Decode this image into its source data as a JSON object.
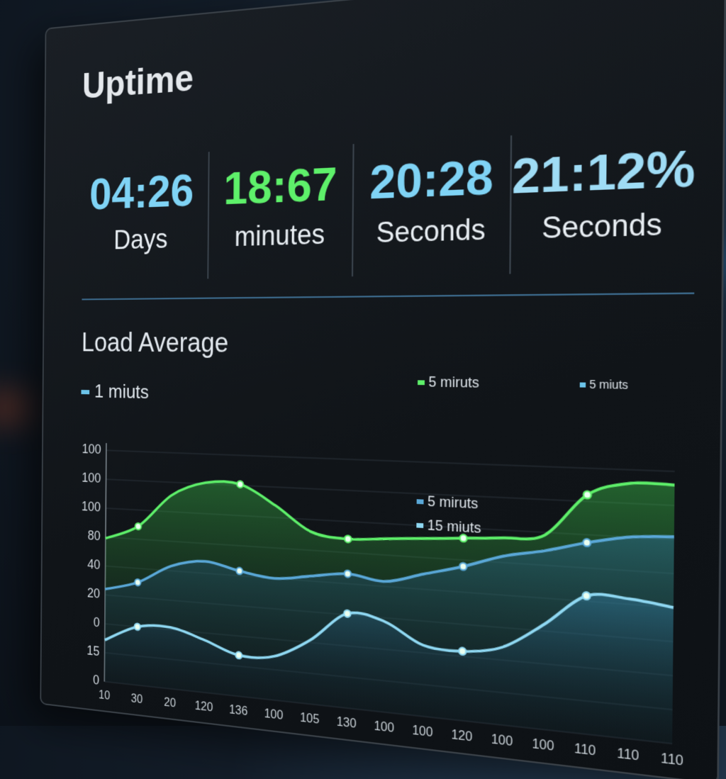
{
  "panel": {
    "title": "Uptime",
    "stats": [
      {
        "value": "04:26",
        "unit": "Days",
        "color": "#7fd3f5"
      },
      {
        "value": "18:67",
        "unit": "minutes",
        "color": "#5ef06a"
      },
      {
        "value": "20:28",
        "unit": "Seconds",
        "color": "#7fd3f5"
      },
      {
        "value": "21:12%",
        "unit": "Seconds",
        "color": "#9fdcf5"
      }
    ]
  },
  "chart_data": {
    "type": "line",
    "title": "Load Average",
    "annotations": [
      {
        "text": "1 miuts",
        "color": "#6cc4ea"
      },
      {
        "text": "5 miuts",
        "color": "#6cc4ea"
      }
    ],
    "categories": [
      "10",
      "30",
      "20",
      "120",
      "136",
      "100",
      "105",
      "130",
      "100",
      "100",
      "120",
      "100",
      "100",
      "110",
      "110",
      "110"
    ],
    "y_axis_labels": [
      "100",
      "100",
      "100",
      "80",
      "40",
      "20",
      "0",
      "15",
      "0"
    ],
    "ylim": [
      0,
      100
    ],
    "series": [
      {
        "name": "5 miruts",
        "color": "#5ef06a",
        "values": [
          62,
          68,
          82,
          88,
          88,
          80,
          70,
          68,
          69,
          70,
          71,
          72,
          74,
          90,
          95,
          95
        ]
      },
      {
        "name": "5 miruts",
        "color": "#5aa8d8",
        "values": [
          40,
          44,
          52,
          55,
          52,
          50,
          52,
          54,
          52,
          56,
          60,
          65,
          68,
          72,
          75,
          76
        ]
      },
      {
        "name": "15 miuts",
        "color": "#8fd8f2",
        "values": [
          18,
          25,
          26,
          22,
          17,
          18,
          26,
          38,
          36,
          28,
          27,
          30,
          40,
          52,
          52,
          50
        ]
      }
    ]
  }
}
